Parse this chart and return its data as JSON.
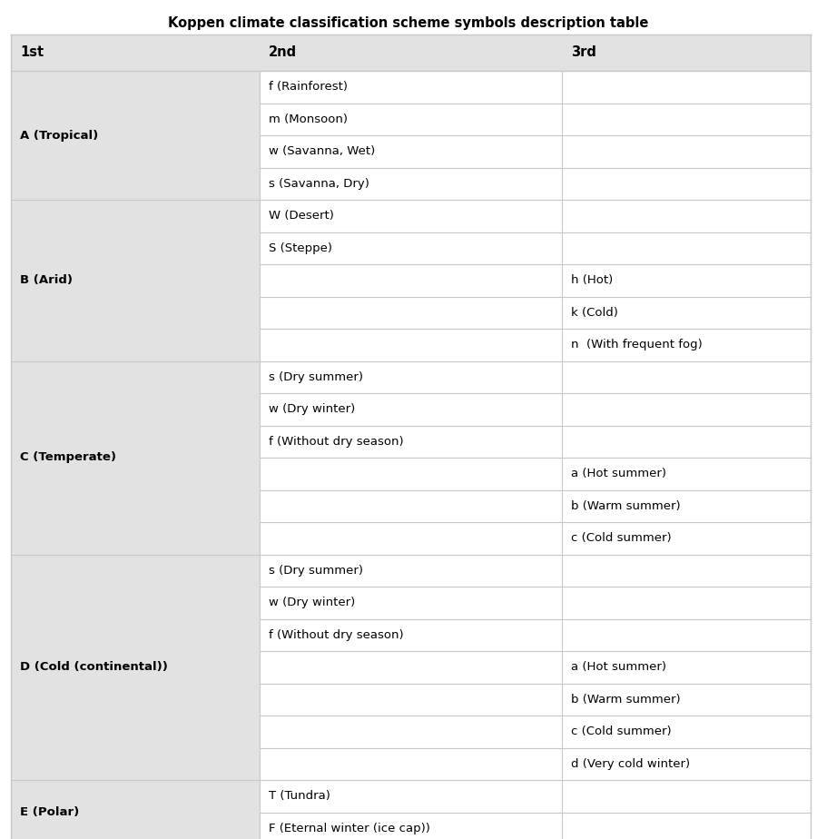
{
  "title": "Koppen climate classification scheme symbols description table",
  "col_headers": [
    "1st",
    "2nd",
    "3rd"
  ],
  "header_bg": "#e2e2e2",
  "col0_bg": "#e2e2e2",
  "col12_bg": "#ffffff",
  "col12_alt_bg": "#f5f5f5",
  "separator_color": "#c8c8c8",
  "text_color": "#000000",
  "title_fontsize": 10.5,
  "header_fontsize": 10.5,
  "cell_fontsize": 9.5,
  "rows": [
    {
      "col0": "A (Tropical)",
      "col1": "f (Rainforest)",
      "col2": "",
      "group_start": true
    },
    {
      "col0": "",
      "col1": "m (Monsoon)",
      "col2": "",
      "group_start": false
    },
    {
      "col0": "",
      "col1": "w (Savanna, Wet)",
      "col2": "",
      "group_start": false
    },
    {
      "col0": "",
      "col1": "s (Savanna, Dry)",
      "col2": "",
      "group_start": false
    },
    {
      "col0": "B (Arid)",
      "col1": "W (Desert)",
      "col2": "",
      "group_start": true
    },
    {
      "col0": "",
      "col1": "S (Steppe)",
      "col2": "",
      "group_start": false
    },
    {
      "col0": "",
      "col1": "",
      "col2": "h (Hot)",
      "group_start": false
    },
    {
      "col0": "",
      "col1": "",
      "col2": "k (Cold)",
      "group_start": false
    },
    {
      "col0": "",
      "col1": "",
      "col2": "n  (With frequent fog)",
      "group_start": false
    },
    {
      "col0": "C (Temperate)",
      "col1": "s (Dry summer)",
      "col2": "",
      "group_start": true
    },
    {
      "col0": "",
      "col1": "w (Dry winter)",
      "col2": "",
      "group_start": false
    },
    {
      "col0": "",
      "col1": "f (Without dry season)",
      "col2": "",
      "group_start": false
    },
    {
      "col0": "",
      "col1": "",
      "col2": "a (Hot summer)",
      "group_start": false
    },
    {
      "col0": "",
      "col1": "",
      "col2": "b (Warm summer)",
      "group_start": false
    },
    {
      "col0": "",
      "col1": "",
      "col2": "c (Cold summer)",
      "group_start": false
    },
    {
      "col0": "D (Cold (continental))",
      "col1": "s (Dry summer)",
      "col2": "",
      "group_start": true
    },
    {
      "col0": "",
      "col1": "w (Dry winter)",
      "col2": "",
      "group_start": false
    },
    {
      "col0": "",
      "col1": "f (Without dry season)",
      "col2": "",
      "group_start": false
    },
    {
      "col0": "",
      "col1": "",
      "col2": "a (Hot summer)",
      "group_start": false
    },
    {
      "col0": "",
      "col1": "",
      "col2": "b (Warm summer)",
      "group_start": false
    },
    {
      "col0": "",
      "col1": "",
      "col2": "c (Cold summer)",
      "group_start": false
    },
    {
      "col0": "",
      "col1": "",
      "col2": "d (Very cold winter)",
      "group_start": false
    },
    {
      "col0": "E (Polar)",
      "col1": "T (Tundra)",
      "col2": "",
      "group_start": true
    },
    {
      "col0": "",
      "col1": "F (Eternal winter (ice cap))",
      "col2": "",
      "group_start": false
    }
  ]
}
